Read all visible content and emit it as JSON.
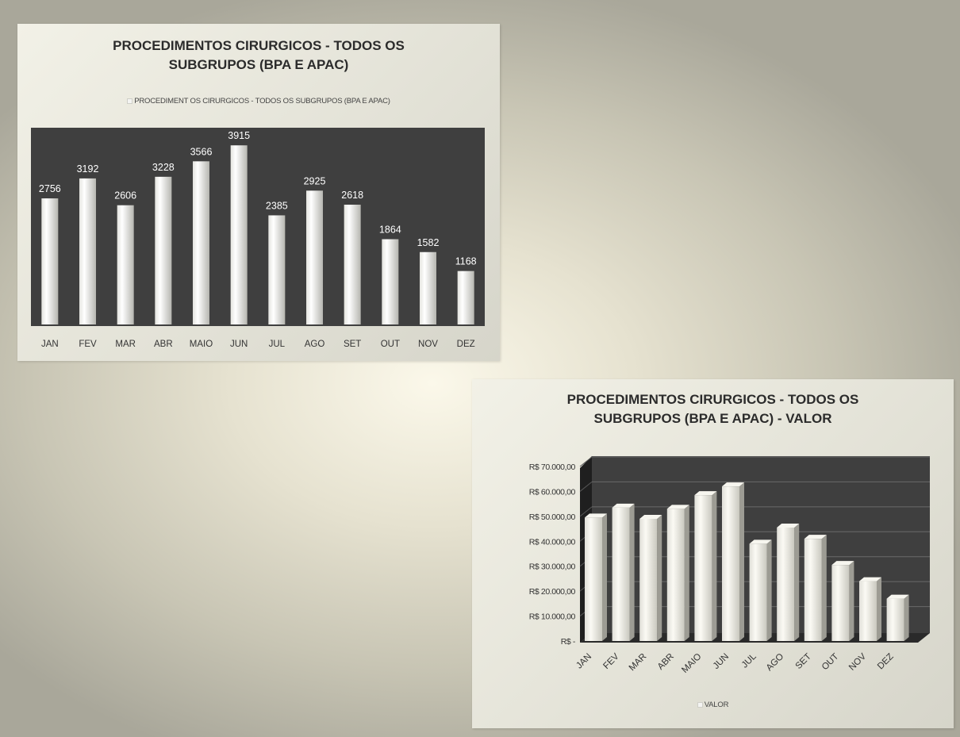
{
  "charts": {
    "volume": {
      "title": "PROCEDIMENTOS  CIRURGICOS - TODOS OS SUBGRUPOS (BPA E APAC)",
      "legend": "PROCEDIMENT OS CIRURGICOS - TODOS OS SUBGRUPOS (BPA E APAC)"
    },
    "valor": {
      "title": "PROCEDIMENTOS  CIRURGICOS - TODOS OS SUBGRUPOS (BPA E APAC)  -   VALOR",
      "legend": "VALOR"
    }
  },
  "colors": {
    "plot_background": "#3f3f3f",
    "bar_light": "#ffffff",
    "bar_dark": "#b6b6b0",
    "gridline": "#6a6a6a"
  },
  "chart_data": [
    {
      "type": "bar",
      "title": "PROCEDIMENTOS  CIRURGICOS - TODOS OS SUBGRUPOS (BPA E APAC)",
      "categories": [
        "JAN",
        "FEV",
        "MAR",
        "ABR",
        "MAIO",
        "JUN",
        "JUL",
        "AGO",
        "SET",
        "OUT",
        "NOV",
        "DEZ"
      ],
      "series": [
        {
          "name": "PROCEDIMENT OS CIRURGICOS - TODOS OS SUBGRUPOS (BPA E APAC)",
          "values": [
            2756,
            3192,
            2606,
            3228,
            3566,
            3915,
            2385,
            2925,
            2618,
            1864,
            1582,
            1168
          ]
        }
      ],
      "data_labels": true,
      "ylim": [
        0,
        4300
      ],
      "grid": false,
      "legend_position": "top"
    },
    {
      "type": "bar",
      "title": "PROCEDIMENTOS  CIRURGICOS - TODOS OS SUBGRUPOS (BPA E APAC)  -   VALOR",
      "categories": [
        "JAN",
        "FEV",
        "MAR",
        "ABR",
        "MAIO",
        "JUN",
        "JUL",
        "AGO",
        "SET",
        "OUT",
        "NOV",
        "DEZ"
      ],
      "series": [
        {
          "name": "VALOR",
          "values": [
            49500,
            53500,
            49000,
            53000,
            58500,
            62000,
            39000,
            45500,
            41000,
            30500,
            24000,
            17000
          ]
        }
      ],
      "ylim": [
        0,
        70000
      ],
      "yticks": [
        "R$ 70.000,00",
        "R$ 60.000,00",
        "R$ 50.000,00",
        "R$ 40.000,00",
        "R$ 30.000,00",
        "R$ 20.000,00",
        "R$ 10.000,00",
        "R$ -"
      ],
      "grid": true,
      "legend_position": "bottom",
      "style": "3d"
    }
  ]
}
